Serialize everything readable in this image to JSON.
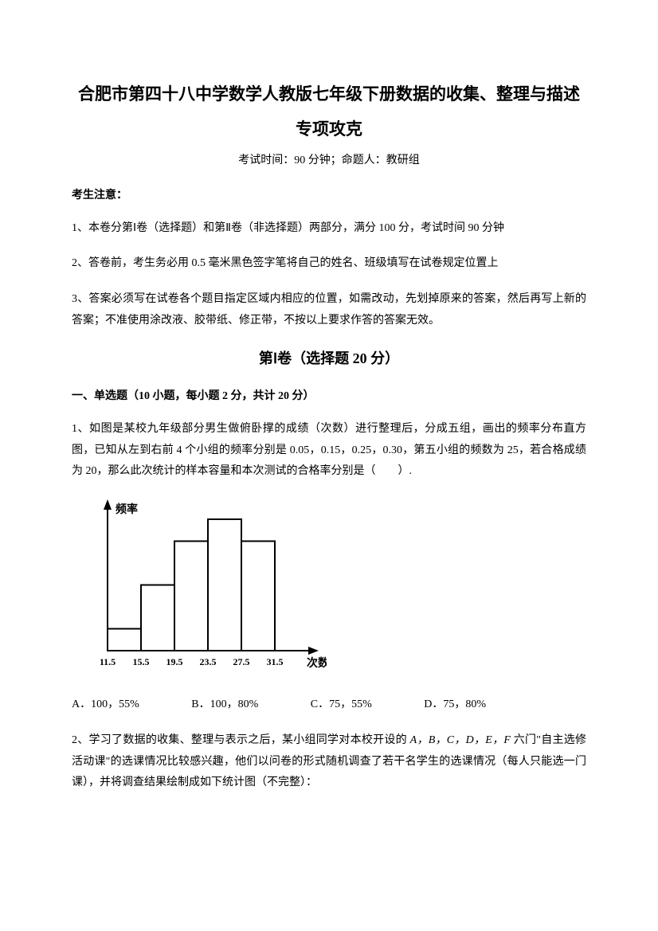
{
  "title_line1": "合肥市第四十八中学数学人教版七年级下册数据的收集、整理与描述",
  "title_line2": "专项攻克",
  "exam_info": "考试时间：90 分钟；命题人：教研组",
  "notice_heading": "考生注意：",
  "notice_items": [
    "1、本卷分第Ⅰ卷（选择题）和第Ⅱ卷（非选择题）两部分，满分 100 分，考试时间 90 分钟",
    "2、答卷前，考生务必用 0.5 毫米黑色签字笔将自己的姓名、班级填写在试卷规定位置上",
    "3、答案必须写在试卷各个题目指定区域内相应的位置，如需改动，先划掉原来的答案，然后再写上新的答案；不准使用涂改液、胶带纸、修正带，不按以上要求作答的答案无效。"
  ],
  "section_heading": "第Ⅰ卷（选择题  20 分）",
  "question_type": "一、单选题（10 小题，每小题 2 分，共计 20 分）",
  "q1_text": "1、如图是某校九年级部分男生做俯卧撑的成绩（次数）进行整理后，分成五组，画出的频率分布直方图，已知从左到右前 4 个小组的频率分别是 0.05，0.15，0.25，0.30，第五小组的频数为 25，若合格成绩为 20，那么此次统计的样本容量和本次测试的合格率分别是（　　）.",
  "chart": {
    "type": "histogram",
    "y_label": "频率",
    "x_label": "次数",
    "x_ticks": [
      "11.5",
      "15.5",
      "19.5",
      "23.5",
      "27.5",
      "31.5"
    ],
    "bar_heights": [
      0.05,
      0.15,
      0.25,
      0.3,
      0.25
    ],
    "bar_color": "#ffffff",
    "border_color": "#000000",
    "axis_color": "#000000",
    "background_color": "#ffffff",
    "label_fontsize": 12,
    "axis_label_fontsize": 14,
    "axis_label_bold": true
  },
  "q1_options": {
    "a": "A．100，55%",
    "b": "B．100，80%",
    "c": "C．75，55%",
    "d": "D．75，80%"
  },
  "q2_text_prefix": "2、学习了数据的收集、整理与表示之后，某小组同学对本校开设的 ",
  "q2_courses": "A，B，C，D，E，F",
  "q2_text_mid": " 六门\"自主选修活动课\"的选课情况比较感兴趣，他们以问卷的形式随机调查了若干名学生的选课情况（每人只能选一门课），并将调查结果绘制成如下统计图（不完整）："
}
